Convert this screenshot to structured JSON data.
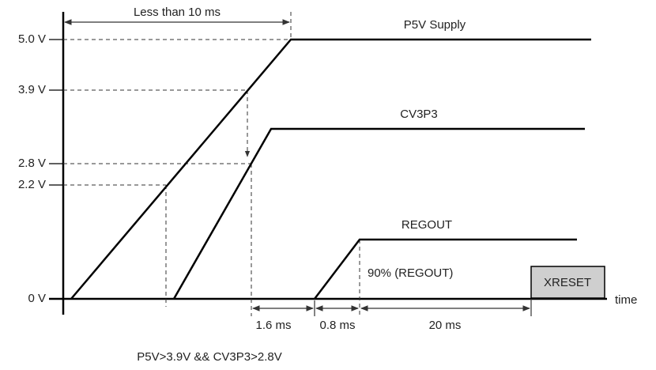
{
  "levels": [
    "5.0 V",
    "3.9 V",
    "2.8 V",
    "2.2 V",
    "0 V"
  ],
  "axis_label": "time",
  "signals": [
    "P5V Supply",
    "CV3P3",
    "REGOUT"
  ],
  "threshold_label": "90% (REGOUT)",
  "box_label": "XRESET",
  "intervals": [
    "Less than 10 ms",
    "1.6 ms",
    "0.8 ms",
    "20 ms"
  ],
  "condition": "P5V>3.9V && CV3P3>2.8V"
}
